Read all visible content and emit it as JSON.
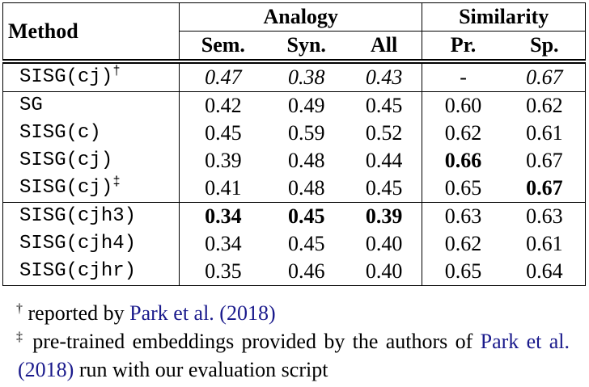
{
  "table": {
    "header": {
      "method": "Method",
      "groups": [
        "Analogy",
        "Similarity"
      ],
      "columns": [
        "Sem.",
        "Syn.",
        "All",
        "Pr.",
        "Sp."
      ]
    },
    "sections": [
      [
        {
          "method": "SISG(cj)",
          "mark": "†",
          "values": [
            "0.47",
            "0.38",
            "0.43",
            "-",
            "0.67"
          ]
        }
      ],
      [
        {
          "method": "SG",
          "values": [
            "0.42",
            "0.49",
            "0.45",
            "0.60",
            "0.62"
          ]
        },
        {
          "method": "SISG(c)",
          "values": [
            "0.45",
            "0.59",
            "0.52",
            "0.62",
            "0.61"
          ]
        },
        {
          "method": "SISG(cj)",
          "values": [
            "0.39",
            "0.48",
            "0.44",
            "0.66",
            "0.67"
          ]
        },
        {
          "method": "SISG(cj)",
          "mark": "‡",
          "values": [
            "0.41",
            "0.48",
            "0.45",
            "0.65",
            "0.67"
          ]
        }
      ],
      [
        {
          "method": "SISG(cjh3)",
          "values": [
            "0.34",
            "0.45",
            "0.39",
            "0.63",
            "0.63"
          ]
        },
        {
          "method": "SISG(cjh4)",
          "values": [
            "0.34",
            "0.45",
            "0.40",
            "0.62",
            "0.61"
          ]
        },
        {
          "method": "SISG(cjhr)",
          "values": [
            "0.35",
            "0.46",
            "0.40",
            "0.65",
            "0.64"
          ]
        }
      ]
    ]
  },
  "footnotes": [
    {
      "mark": "†",
      "text": "reported by ",
      "link": "Park et al. (2018)"
    },
    {
      "mark": "‡",
      "text": "pre-trained embeddings provided by the authors of ",
      "link": "Park et al. (2018)",
      "after": "run with our evaluation script"
    }
  ]
}
